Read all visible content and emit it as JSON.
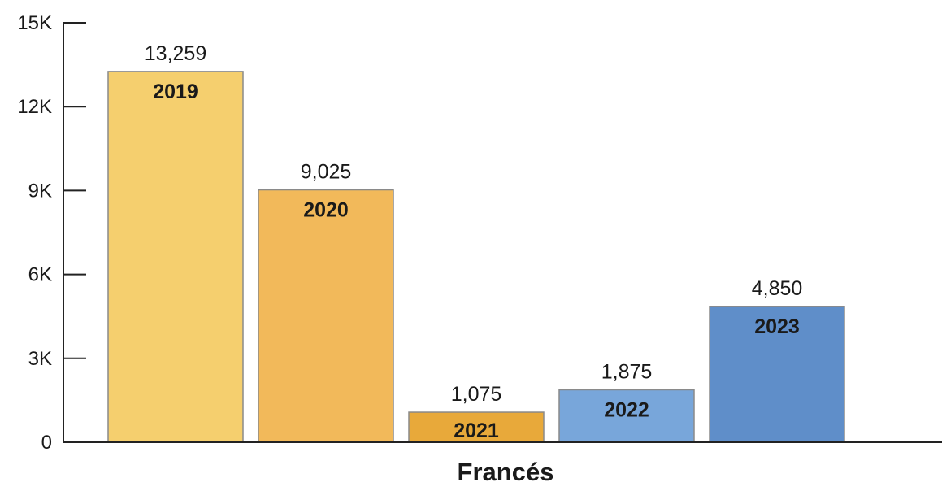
{
  "chart_data": {
    "type": "bar",
    "title": "",
    "xlabel": "Francés",
    "ylabel": "",
    "ylim": [
      0,
      15000
    ],
    "yticks": [
      {
        "value": 0,
        "label": "0"
      },
      {
        "value": 3000,
        "label": "3K"
      },
      {
        "value": 6000,
        "label": "6K"
      },
      {
        "value": 9000,
        "label": "9K"
      },
      {
        "value": 12000,
        "label": "12K"
      },
      {
        "value": 15000,
        "label": "15K"
      }
    ],
    "categories": [
      "2019",
      "2020",
      "2021",
      "2022",
      "2023"
    ],
    "values": [
      13259,
      9025,
      1075,
      1875,
      4850
    ],
    "value_labels": [
      "13,259",
      "9,025",
      "1,075",
      "1,875",
      "4,850"
    ],
    "colors": [
      "#f5cf6e",
      "#f2b95a",
      "#e8a93a",
      "#78a6da",
      "#5f8ec9"
    ],
    "axis_color": "#222222",
    "grid": false,
    "legend": "none"
  }
}
